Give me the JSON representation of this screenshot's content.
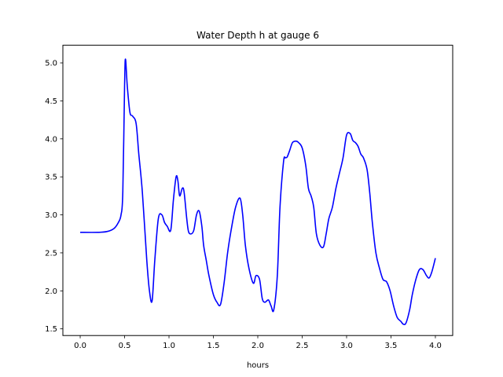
{
  "chart_data": {
    "type": "line",
    "title": "Water Depth h at gauge 6",
    "xlabel": "hours",
    "ylabel": "",
    "xlim": [
      -0.195,
      4.195
    ],
    "ylim": [
      1.412,
      5.232
    ],
    "xticks": [
      0.0,
      0.5,
      1.0,
      1.5,
      2.0,
      2.5,
      3.0,
      3.5,
      4.0
    ],
    "xtick_labels": [
      "0.0",
      "0.5",
      "1.0",
      "1.5",
      "2.0",
      "2.5",
      "3.0",
      "3.5",
      "4.0"
    ],
    "yticks": [
      1.5,
      2.0,
      2.5,
      3.0,
      3.5,
      4.0,
      4.5,
      5.0
    ],
    "ytick_labels": [
      "1.5",
      "2.0",
      "2.5",
      "3.0",
      "3.5",
      "4.0",
      "4.5",
      "5.0"
    ],
    "grid": false,
    "series": [
      {
        "name": "",
        "color": "#0000ff",
        "x": [
          0.0,
          0.2,
          0.3,
          0.38,
          0.43,
          0.46,
          0.48,
          0.5,
          0.51,
          0.53,
          0.56,
          0.59,
          0.63,
          0.66,
          0.7,
          0.75,
          0.78,
          0.81,
          0.84,
          0.88,
          0.92,
          0.95,
          0.98,
          1.02,
          1.05,
          1.08,
          1.1,
          1.12,
          1.15,
          1.17,
          1.2,
          1.22,
          1.25,
          1.28,
          1.31,
          1.34,
          1.37,
          1.39,
          1.42,
          1.45,
          1.5,
          1.54,
          1.58,
          1.62,
          1.66,
          1.7,
          1.75,
          1.8,
          1.83,
          1.86,
          1.9,
          1.95,
          1.98,
          2.02,
          2.05,
          2.08,
          2.12,
          2.15,
          2.18,
          2.22,
          2.25,
          2.29,
          2.31,
          2.33,
          2.36,
          2.39,
          2.43,
          2.46,
          2.5,
          2.54,
          2.57,
          2.6,
          2.63,
          2.66,
          2.7,
          2.74,
          2.77,
          2.8,
          2.84,
          2.88,
          2.92,
          2.96,
          3.0,
          3.04,
          3.07,
          3.1,
          3.13,
          3.16,
          3.19,
          3.23,
          3.26,
          3.29,
          3.33,
          3.37,
          3.41,
          3.45,
          3.49,
          3.53,
          3.57,
          3.61,
          3.64,
          3.67,
          3.71,
          3.74,
          3.78,
          3.82,
          3.86,
          3.9,
          3.93,
          3.96,
          4.0
        ],
        "y": [
          2.77,
          2.77,
          2.78,
          2.82,
          2.9,
          3.0,
          3.3,
          4.7,
          5.05,
          4.7,
          4.35,
          4.3,
          4.2,
          3.8,
          3.3,
          2.4,
          2.0,
          1.87,
          2.4,
          2.95,
          3.0,
          2.9,
          2.85,
          2.8,
          3.2,
          3.5,
          3.45,
          3.25,
          3.35,
          3.3,
          2.95,
          2.78,
          2.75,
          2.8,
          3.0,
          3.05,
          2.85,
          2.6,
          2.4,
          2.2,
          1.95,
          1.85,
          1.82,
          2.1,
          2.5,
          2.8,
          3.1,
          3.22,
          3.0,
          2.6,
          2.3,
          2.1,
          2.2,
          2.15,
          1.9,
          1.85,
          1.88,
          1.8,
          1.75,
          2.2,
          3.1,
          3.7,
          3.75,
          3.76,
          3.85,
          3.95,
          3.97,
          3.95,
          3.88,
          3.65,
          3.35,
          3.25,
          3.1,
          2.75,
          2.6,
          2.58,
          2.75,
          2.95,
          3.1,
          3.35,
          3.55,
          3.75,
          4.05,
          4.07,
          3.98,
          3.95,
          3.9,
          3.8,
          3.75,
          3.6,
          3.3,
          2.9,
          2.5,
          2.3,
          2.15,
          2.12,
          2.0,
          1.8,
          1.65,
          1.6,
          1.56,
          1.58,
          1.75,
          1.95,
          2.15,
          2.28,
          2.28,
          2.2,
          2.17,
          2.25,
          2.43
        ]
      }
    ]
  }
}
